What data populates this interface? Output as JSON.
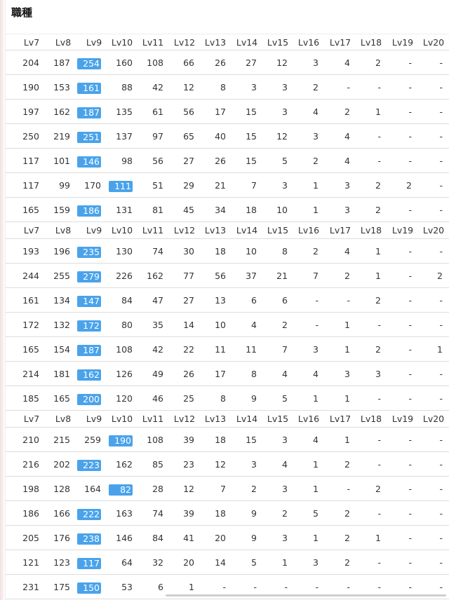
{
  "page": {
    "title": "職種"
  },
  "columns": [
    "Lv7",
    "Lv8",
    "Lv9",
    "Lv10",
    "Lv11",
    "Lv12",
    "Lv13",
    "Lv14",
    "Lv15",
    "Lv16",
    "Lv17",
    "Lv18",
    "Lv19",
    "Lv20"
  ],
  "colors": {
    "highlight": "#4aa3ea",
    "highlight_text": "#ffffff",
    "text": "#333333",
    "divider": "#dddddd"
  },
  "groups": [
    {
      "rows": [
        {
          "values": [
            "204",
            "187",
            "254",
            "160",
            "108",
            "66",
            "26",
            "27",
            "12",
            "3",
            "4",
            "2",
            "-",
            "-"
          ],
          "highlight": 2
        },
        {
          "values": [
            "190",
            "153",
            "161",
            "88",
            "42",
            "12",
            "8",
            "3",
            "3",
            "2",
            "-",
            "-",
            "-",
            "-"
          ],
          "highlight": 2
        },
        {
          "values": [
            "197",
            "162",
            "187",
            "135",
            "61",
            "56",
            "17",
            "15",
            "3",
            "4",
            "2",
            "1",
            "-",
            "-"
          ],
          "highlight": 2
        },
        {
          "values": [
            "250",
            "219",
            "251",
            "137",
            "97",
            "65",
            "40",
            "15",
            "12",
            "3",
            "4",
            "-",
            "-",
            "-"
          ],
          "highlight": 2
        },
        {
          "values": [
            "117",
            "101",
            "146",
            "98",
            "56",
            "27",
            "26",
            "15",
            "5",
            "2",
            "4",
            "-",
            "-",
            "-"
          ],
          "highlight": 2
        },
        {
          "values": [
            "117",
            "99",
            "170",
            "111",
            "51",
            "29",
            "21",
            "7",
            "3",
            "1",
            "3",
            "2",
            "2",
            "-"
          ],
          "highlight": 3
        },
        {
          "values": [
            "165",
            "159",
            "186",
            "131",
            "81",
            "45",
            "34",
            "18",
            "10",
            "1",
            "3",
            "2",
            "-",
            "-"
          ],
          "highlight": 2
        }
      ]
    },
    {
      "rows": [
        {
          "values": [
            "193",
            "196",
            "235",
            "130",
            "74",
            "30",
            "18",
            "10",
            "8",
            "2",
            "4",
            "1",
            "-",
            "-"
          ],
          "highlight": 2
        },
        {
          "values": [
            "244",
            "255",
            "279",
            "226",
            "162",
            "77",
            "56",
            "37",
            "21",
            "7",
            "2",
            "1",
            "-",
            "2"
          ],
          "highlight": 2
        },
        {
          "values": [
            "161",
            "134",
            "147",
            "84",
            "47",
            "27",
            "13",
            "6",
            "6",
            "-",
            "-",
            "2",
            "-",
            "-"
          ],
          "highlight": 2
        },
        {
          "values": [
            "172",
            "132",
            "172",
            "80",
            "35",
            "14",
            "10",
            "4",
            "2",
            "-",
            "1",
            "-",
            "-",
            "-"
          ],
          "highlight": 2
        },
        {
          "values": [
            "165",
            "154",
            "187",
            "108",
            "42",
            "22",
            "11",
            "11",
            "7",
            "3",
            "1",
            "2",
            "-",
            "1"
          ],
          "highlight": 2
        },
        {
          "values": [
            "214",
            "181",
            "162",
            "126",
            "49",
            "26",
            "17",
            "8",
            "4",
            "4",
            "3",
            "3",
            "-",
            "-"
          ],
          "highlight": 2
        },
        {
          "values": [
            "185",
            "165",
            "200",
            "120",
            "46",
            "25",
            "8",
            "9",
            "5",
            "1",
            "1",
            "-",
            "-",
            "-"
          ],
          "highlight": 2
        }
      ]
    },
    {
      "rows": [
        {
          "values": [
            "210",
            "215",
            "259",
            "190",
            "108",
            "39",
            "18",
            "15",
            "3",
            "4",
            "1",
            "-",
            "-",
            "-"
          ],
          "highlight": 3
        },
        {
          "values": [
            "216",
            "202",
            "223",
            "162",
            "85",
            "23",
            "12",
            "3",
            "4",
            "1",
            "2",
            "-",
            "-",
            "-"
          ],
          "highlight": 2
        },
        {
          "values": [
            "198",
            "128",
            "164",
            "82",
            "28",
            "12",
            "7",
            "2",
            "3",
            "1",
            "-",
            "2",
            "-",
            "-"
          ],
          "highlight": 3
        },
        {
          "values": [
            "186",
            "166",
            "222",
            "163",
            "74",
            "39",
            "18",
            "9",
            "2",
            "5",
            "2",
            "-",
            "-",
            "-"
          ],
          "highlight": 2
        },
        {
          "values": [
            "205",
            "176",
            "238",
            "146",
            "84",
            "41",
            "20",
            "9",
            "3",
            "1",
            "2",
            "1",
            "-",
            "-"
          ],
          "highlight": 2
        },
        {
          "values": [
            "121",
            "123",
            "117",
            "64",
            "32",
            "20",
            "14",
            "5",
            "1",
            "3",
            "2",
            "-",
            "-",
            "-"
          ],
          "highlight": 2
        },
        {
          "values": [
            "231",
            "175",
            "150",
            "53",
            "6",
            "1",
            "-",
            "-",
            "-",
            "-",
            "-",
            "-",
            "-",
            "-"
          ],
          "highlight": 2
        }
      ]
    }
  ]
}
